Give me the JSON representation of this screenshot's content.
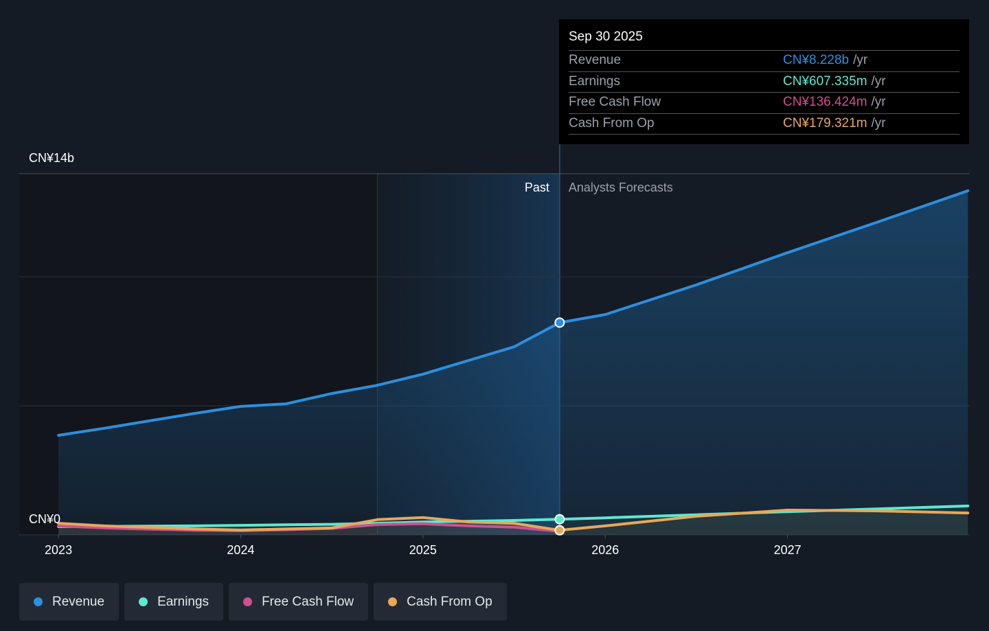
{
  "chart_data": {
    "type": "line",
    "x": [
      2023,
      2023.25,
      2023.5,
      2023.75,
      2024,
      2024.25,
      2024.5,
      2024.75,
      2025,
      2025.25,
      2025.5,
      2025.75,
      2026,
      2026.5,
      2027,
      2027.5,
      2027.99
    ],
    "xlim": [
      2022.785,
      2028.0
    ],
    "xticks": [
      2023,
      2024,
      2025,
      2026,
      2027
    ],
    "ylim": [
      0,
      14
    ],
    "yticks": [
      {
        "value": 0,
        "label": "CN¥0"
      },
      {
        "value": 14,
        "label": "CN¥14b"
      }
    ],
    "ygrid": [
      0,
      5,
      10,
      14
    ],
    "series": [
      {
        "name": "Revenue",
        "color": "#2d8fdd",
        "values": [
          3.86,
          4.13,
          4.42,
          4.71,
          4.98,
          5.08,
          5.48,
          5.8,
          6.23,
          6.76,
          7.29,
          8.228,
          8.54,
          9.69,
          10.94,
          12.14,
          13.34
        ]
      },
      {
        "name": "Earnings",
        "color": "#5ee8d0",
        "values": [
          0.32,
          0.33,
          0.34,
          0.35,
          0.37,
          0.39,
          0.41,
          0.45,
          0.5,
          0.53,
          0.56,
          0.607,
          0.66,
          0.78,
          0.9,
          1.01,
          1.12
        ]
      },
      {
        "name": "Free Cash Flow",
        "color": "#d04f8f",
        "values": [
          0.35,
          0.27,
          0.22,
          0.18,
          0.16,
          0.2,
          0.25,
          0.4,
          0.43,
          0.35,
          0.3,
          0.136,
          null,
          null,
          null,
          null,
          null
        ]
      },
      {
        "name": "Cash From Op",
        "color": "#e8a85a",
        "values": [
          0.45,
          0.35,
          0.29,
          0.23,
          0.19,
          0.23,
          0.27,
          0.59,
          0.67,
          0.5,
          0.45,
          0.179,
          0.35,
          0.72,
          0.96,
          0.93,
          0.85
        ]
      }
    ],
    "past_label": "Past",
    "forecast_label": "Analysts Forecasts",
    "tooltip": {
      "title": "Sep 30 2025",
      "rows": [
        {
          "label": "Revenue",
          "value": "CN¥8.228b",
          "unit": "/yr"
        },
        {
          "label": "Earnings",
          "value": "CN¥607.335m",
          "unit": "/yr"
        },
        {
          "label": "Free Cash Flow",
          "value": "CN¥136.424m",
          "unit": "/yr"
        },
        {
          "label": "Cash From Op",
          "value": "CN¥179.321m",
          "unit": "/yr"
        }
      ]
    }
  }
}
